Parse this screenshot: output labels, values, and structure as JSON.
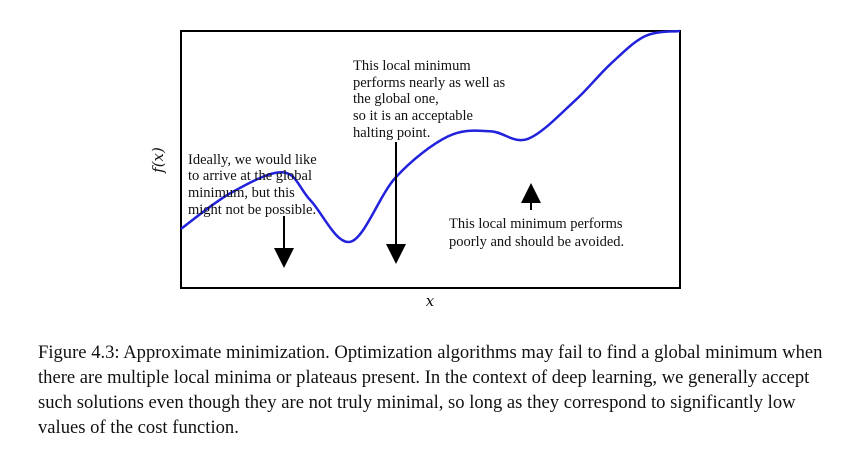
{
  "chart_data": {
    "type": "line",
    "title": "",
    "xlabel": "x",
    "ylabel": "f(x)",
    "grid": false,
    "legend": "none",
    "line_color": "#2222dd",
    "series": [
      {
        "points": [
          [
            0.0,
            0.77
          ],
          [
            0.1,
            0.63
          ],
          [
            0.205,
            0.55
          ],
          [
            0.26,
            0.66
          ],
          [
            0.34,
            0.82
          ],
          [
            0.43,
            0.57
          ],
          [
            0.535,
            0.41
          ],
          [
            0.62,
            0.39
          ],
          [
            0.695,
            0.42
          ],
          [
            0.79,
            0.27
          ],
          [
            0.86,
            0.13
          ],
          [
            0.93,
            0.02
          ],
          [
            1.0,
            0.0
          ]
        ]
      }
    ],
    "annotations": [
      {
        "lines": [
          "Ideally, we would like",
          "to arrive at the global",
          "minimum, but this",
          "might not be possible."
        ]
      },
      {
        "lines": [
          "This local minimum",
          "performs nearly as well as",
          "the global one,",
          "so it is an acceptable",
          "halting point."
        ]
      },
      {
        "lines": [
          "This local minimum performs",
          "poorly and should be avoided."
        ]
      }
    ]
  },
  "caption": "Figure 4.3: Approximate minimization. Optimization algorithms may fail to find a global minimum when there are multiple local minima or plateaus present. In the context of deep learning, we generally accept such solutions even though they are not truly minimal, so long as they correspond to significantly low values of the cost function."
}
